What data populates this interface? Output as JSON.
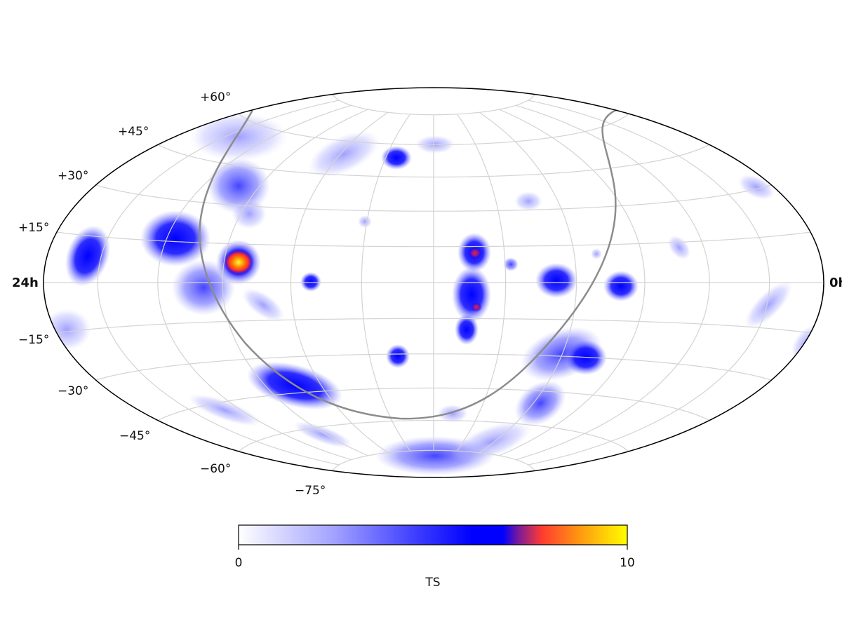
{
  "map": {
    "projection": "Hammer-Aitoff (all-sky)",
    "left_ra_label": "24h",
    "right_ra_label": "0h",
    "dec_labels": [
      "+60°",
      "+45°",
      "+30°",
      "+15°",
      "−15°",
      "−30°",
      "−45°",
      "−60°",
      "−75°"
    ],
    "grid_color": "#d3d3d3",
    "galactic_plane_color": "#8c8c8c"
  },
  "colorbar": {
    "label": "TS",
    "min_label": "0",
    "max_label": "10",
    "stops": [
      "#ffffff",
      "#5a5aff",
      "#0000ff",
      "#ff3b30",
      "#ffff00"
    ]
  },
  "hotspots": [
    {
      "id": "hot-1",
      "peak_ts": 10,
      "color": "#ffb000"
    },
    {
      "id": "hot-2",
      "peak_ts": 7,
      "color": "#d0204a"
    },
    {
      "id": "hot-3",
      "peak_ts": 7,
      "color": "#c0205a"
    }
  ]
}
